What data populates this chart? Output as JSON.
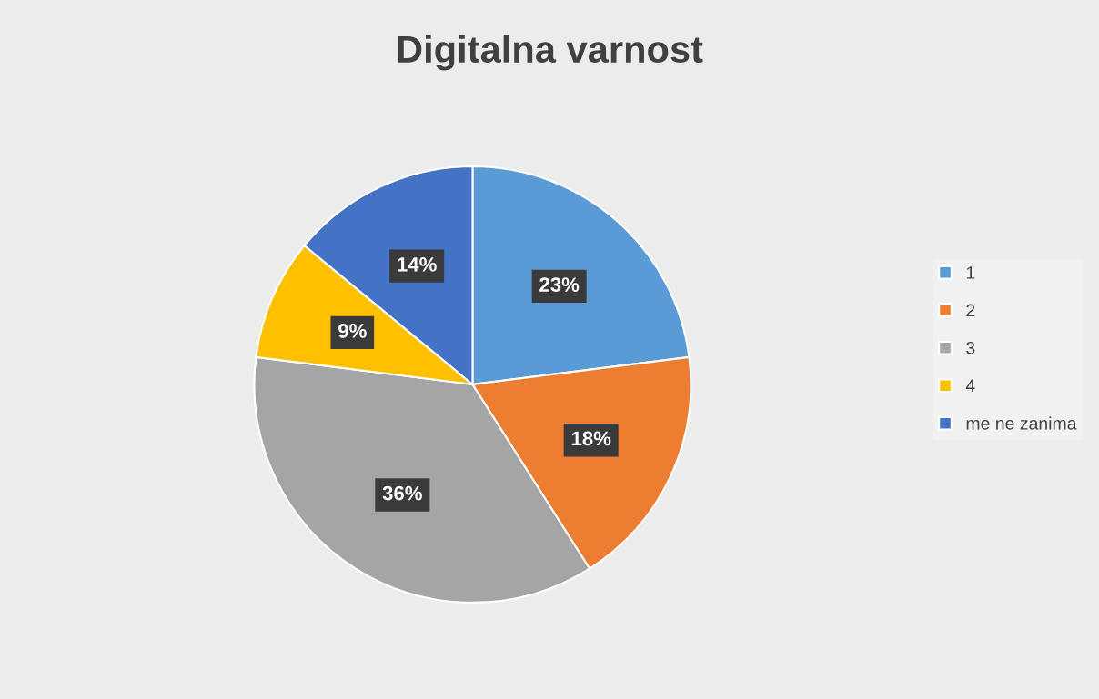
{
  "chart_data": {
    "type": "pie",
    "title": "Digitalna varnost",
    "categories": [
      "1",
      "2",
      "3",
      "4",
      "me ne zanima"
    ],
    "values": [
      23,
      18,
      36,
      9,
      14
    ],
    "colors": [
      "#5b9bd5",
      "#ed7d31",
      "#a5a5a5",
      "#ffc000",
      "#4472c4"
    ],
    "value_labels": [
      "23%",
      "18%",
      "36%",
      "9%",
      "14%"
    ],
    "legend": "right"
  }
}
